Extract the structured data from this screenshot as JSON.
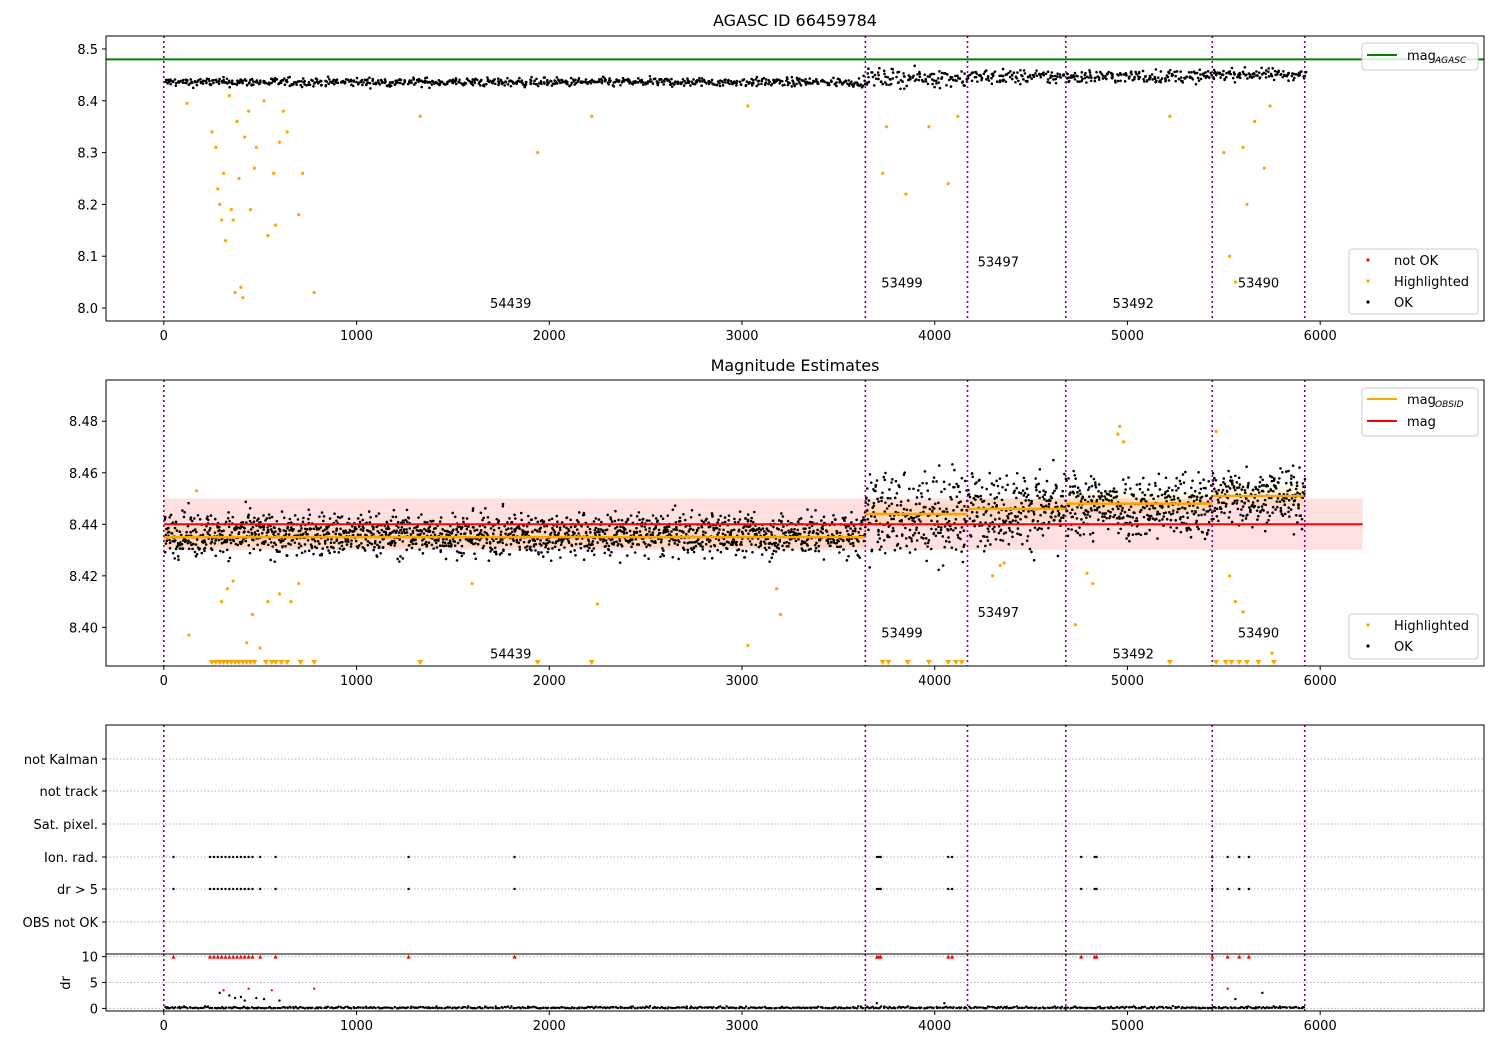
{
  "chart_data": [
    {
      "type": "scatter",
      "title": "AGASC ID 66459784",
      "xlim": [
        -300,
        6850
      ],
      "ylim": [
        7.975,
        8.525
      ],
      "xticks": [
        "0",
        "1000",
        "2000",
        "3000",
        "4000",
        "5000",
        "6000"
      ],
      "xtick_values": [
        0,
        1000,
        2000,
        3000,
        4000,
        5000,
        6000
      ],
      "yticks": [
        "8.0",
        "8.1",
        "8.2",
        "8.3",
        "8.4",
        "8.5"
      ],
      "ytick_values": [
        8.0,
        8.1,
        8.2,
        8.3,
        8.4,
        8.5
      ],
      "mag_agasc": 8.48,
      "obs_boundaries": [
        0,
        3640,
        4170,
        4680,
        5440,
        5920
      ],
      "obsids": [
        {
          "label": "54439",
          "x": 1800,
          "y": 8.0
        },
        {
          "label": "53499",
          "x": 3830,
          "y": 8.04
        },
        {
          "label": "53497",
          "x": 4330,
          "y": 8.08
        },
        {
          "label": "53492",
          "x": 5030,
          "y": 8.0
        },
        {
          "label": "53490",
          "x": 5680,
          "y": 8.04
        }
      ],
      "legend_lines": [
        {
          "name": "mag",
          "sub": "AGASC",
          "color": "#008000"
        }
      ],
      "legend_points": [
        {
          "name": "not OK",
          "color": "#ff0000"
        },
        {
          "name": "Highlighted",
          "color": "#ffa500"
        },
        {
          "name": "OK",
          "color": "#000000"
        }
      ],
      "legend_placement": "top-right / bottom-right",
      "ok_bands": [
        {
          "x0": 0,
          "x1": 3640,
          "center": 8.436,
          "spread": 0.006
        },
        {
          "x0": 3640,
          "x1": 4170,
          "center": 8.444,
          "spread": 0.012
        },
        {
          "x0": 4170,
          "x1": 4680,
          "center": 8.446,
          "spread": 0.01
        },
        {
          "x0": 4680,
          "x1": 5440,
          "center": 8.447,
          "spread": 0.009
        },
        {
          "x0": 5440,
          "x1": 5920,
          "center": 8.451,
          "spread": 0.008
        }
      ],
      "highlighted_points": [
        [
          120,
          8.395
        ],
        [
          250,
          8.34
        ],
        [
          270,
          8.31
        ],
        [
          280,
          8.23
        ],
        [
          290,
          8.2
        ],
        [
          300,
          8.17
        ],
        [
          310,
          8.26
        ],
        [
          320,
          8.13
        ],
        [
          340,
          8.41
        ],
        [
          350,
          8.19
        ],
        [
          360,
          8.17
        ],
        [
          370,
          8.03
        ],
        [
          380,
          8.36
        ],
        [
          390,
          8.25
        ],
        [
          400,
          8.04
        ],
        [
          410,
          8.02
        ],
        [
          420,
          8.33
        ],
        [
          440,
          8.38
        ],
        [
          450,
          8.19
        ],
        [
          470,
          8.27
        ],
        [
          480,
          8.31
        ],
        [
          520,
          8.4
        ],
        [
          540,
          8.14
        ],
        [
          570,
          8.26
        ],
        [
          580,
          8.16
        ],
        [
          600,
          8.32
        ],
        [
          620,
          8.38
        ],
        [
          640,
          8.34
        ],
        [
          700,
          8.18
        ],
        [
          720,
          8.26
        ],
        [
          780,
          8.03
        ],
        [
          1330,
          8.37
        ],
        [
          1940,
          8.3
        ],
        [
          2220,
          8.37
        ],
        [
          3030,
          8.39
        ],
        [
          3730,
          8.26
        ],
        [
          3750,
          8.35
        ],
        [
          3850,
          8.22
        ],
        [
          3970,
          8.35
        ],
        [
          4070,
          8.24
        ],
        [
          4120,
          8.37
        ],
        [
          5220,
          8.37
        ],
        [
          5500,
          8.3
        ],
        [
          5530,
          8.1
        ],
        [
          5560,
          8.05
        ],
        [
          5600,
          8.31
        ],
        [
          5620,
          8.2
        ],
        [
          5660,
          8.36
        ],
        [
          5710,
          8.27
        ],
        [
          5740,
          8.39
        ]
      ],
      "xlabel": "",
      "ylabel": ""
    },
    {
      "type": "scatter",
      "title": "Magnitude Estimates",
      "xlim": [
        -300,
        6850
      ],
      "ylim": [
        8.385,
        8.496
      ],
      "xticks": [
        "0",
        "1000",
        "2000",
        "3000",
        "4000",
        "5000",
        "6000"
      ],
      "xtick_values": [
        0,
        1000,
        2000,
        3000,
        4000,
        5000,
        6000
      ],
      "yticks": [
        "8.40",
        "8.42",
        "8.44",
        "8.46",
        "8.48"
      ],
      "ytick_values": [
        8.4,
        8.42,
        8.44,
        8.46,
        8.48
      ],
      "mag": 8.44,
      "mag_band": [
        8.43,
        8.45
      ],
      "mag_line_xrange": [
        0,
        6220
      ],
      "mag_obsid_segments": [
        {
          "x0": 0,
          "x1": 3640,
          "y": 8.435
        },
        {
          "x0": 3640,
          "x1": 4170,
          "y": 8.444
        },
        {
          "x0": 4170,
          "x1": 4680,
          "y": 8.446
        },
        {
          "x0": 4680,
          "x1": 5440,
          "y": 8.448
        },
        {
          "x0": 5440,
          "x1": 5920,
          "y": 8.451
        }
      ],
      "obs_boundaries": [
        0,
        3640,
        4170,
        4680,
        5440,
        5920
      ],
      "obsids": [
        {
          "label": "54439",
          "x": 1800,
          "y": 8.388
        },
        {
          "label": "53499",
          "x": 3830,
          "y": 8.396
        },
        {
          "label": "53497",
          "x": 4330,
          "y": 8.404
        },
        {
          "label": "53492",
          "x": 5030,
          "y": 8.388
        },
        {
          "label": "53490",
          "x": 5680,
          "y": 8.396
        }
      ],
      "legend_lines": [
        {
          "name": "mag",
          "sub": "OBSID",
          "color": "#ffa500"
        },
        {
          "name": "mag",
          "sub": "",
          "color": "#ff0000"
        }
      ],
      "legend_points": [
        {
          "name": "Highlighted",
          "color": "#ffa500"
        },
        {
          "name": "OK",
          "color": "#000000"
        }
      ],
      "highlighted_points": [
        [
          130,
          8.397
        ],
        [
          170,
          8.453
        ],
        [
          300,
          8.41
        ],
        [
          330,
          8.415
        ],
        [
          360,
          8.418
        ],
        [
          430,
          8.394
        ],
        [
          460,
          8.405
        ],
        [
          500,
          8.392
        ],
        [
          540,
          8.41
        ],
        [
          600,
          8.413
        ],
        [
          660,
          8.41
        ],
        [
          700,
          8.417
        ],
        [
          1600,
          8.417
        ],
        [
          2250,
          8.409
        ],
        [
          3030,
          8.393
        ],
        [
          3180,
          8.415
        ],
        [
          3200,
          8.405
        ],
        [
          4300,
          8.42
        ],
        [
          4340,
          8.424
        ],
        [
          4360,
          8.425
        ],
        [
          4730,
          8.401
        ],
        [
          4790,
          8.421
        ],
        [
          4820,
          8.417
        ],
        [
          4950,
          8.475
        ],
        [
          4960,
          8.478
        ],
        [
          4980,
          8.472
        ],
        [
          5460,
          8.476
        ],
        [
          5530,
          8.42
        ],
        [
          5560,
          8.41
        ],
        [
          5600,
          8.406
        ],
        [
          5750,
          8.39
        ]
      ],
      "clipped_markers": [
        250,
        270,
        290,
        310,
        330,
        350,
        370,
        390,
        410,
        430,
        450,
        470,
        530,
        560,
        580,
        610,
        640,
        710,
        780,
        1330,
        1940,
        2220,
        3730,
        3760,
        3860,
        3970,
        4070,
        4110,
        4140,
        5220,
        5460,
        5510,
        5540,
        5580,
        5620,
        5680,
        5760
      ],
      "xlabel": "",
      "ylabel": ""
    },
    {
      "type": "scatter",
      "title": "",
      "xlim": [
        -300,
        6850
      ],
      "xticks": [
        "0",
        "1000",
        "2000",
        "3000",
        "4000",
        "5000",
        "6000"
      ],
      "xtick_values": [
        0,
        1000,
        2000,
        3000,
        4000,
        5000,
        6000
      ],
      "categories": [
        "not Kalman",
        "not track",
        "Sat. pixel.",
        "Ion. rad.",
        "dr > 5",
        "OBS not OK"
      ],
      "flag_points": {
        "Ion. rad.": [
          50,
          240,
          260,
          280,
          300,
          320,
          340,
          360,
          380,
          400,
          420,
          440,
          460,
          500,
          580,
          1270,
          1820,
          3700,
          3710,
          3720,
          4070,
          4090,
          4760,
          4830,
          4840,
          5440,
          5520,
          5580,
          5630
        ],
        "dr > 5": [
          50,
          240,
          260,
          280,
          300,
          320,
          340,
          360,
          380,
          400,
          420,
          440,
          460,
          500,
          580,
          1270,
          1820,
          3700,
          3710,
          3720,
          4070,
          4090,
          4760,
          4830,
          4840,
          5440,
          5520,
          5580,
          5630
        ]
      },
      "dr_ylabel": "dr",
      "dr_yticks": [
        "0",
        "5",
        "10"
      ],
      "dr_ytick_values": [
        0,
        5,
        10
      ],
      "dr_ylim": [
        -0.5,
        10.5
      ],
      "dr_clipped": [
        50,
        240,
        260,
        280,
        300,
        320,
        340,
        360,
        380,
        400,
        420,
        440,
        460,
        500,
        580,
        1270,
        1820,
        3700,
        3710,
        3720,
        4070,
        4090,
        4760,
        4830,
        4840,
        5440,
        5520,
        5580,
        5630
      ],
      "dr_scatter": [
        [
          290,
          3.0
        ],
        [
          310,
          3.5
        ],
        [
          340,
          2.5
        ],
        [
          370,
          2.0
        ],
        [
          400,
          2.2
        ],
        [
          420,
          1.5
        ],
        [
          440,
          3.8
        ],
        [
          480,
          2.0
        ],
        [
          520,
          1.8
        ],
        [
          560,
          3.5
        ],
        [
          600,
          1.5
        ],
        [
          780,
          3.8
        ],
        [
          3700,
          1.0
        ],
        [
          4050,
          1.0
        ],
        [
          5520,
          3.8
        ],
        [
          5560,
          1.8
        ],
        [
          5700,
          3.0
        ]
      ],
      "obs_boundaries": [
        0,
        3640,
        4170,
        4680,
        5440,
        5920
      ],
      "xlabel": "",
      "ylabel": ""
    }
  ]
}
